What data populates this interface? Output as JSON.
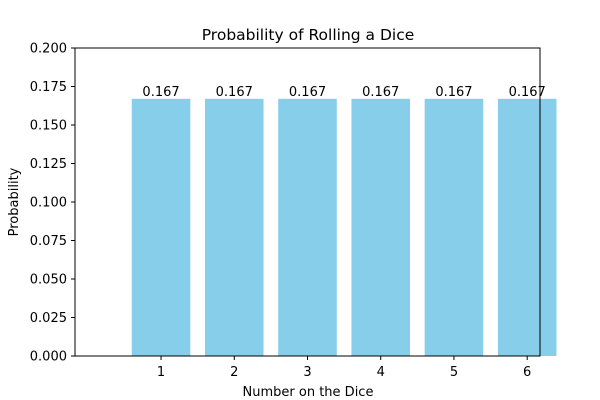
{
  "chart_data": {
    "type": "bar",
    "title": "Probability of Rolling a Dice",
    "xlabel": "Number on the Dice",
    "ylabel": "Probability",
    "categories": [
      "1",
      "2",
      "3",
      "4",
      "5",
      "6"
    ],
    "values": [
      0.167,
      0.167,
      0.167,
      0.167,
      0.167,
      0.167
    ],
    "data_labels": [
      "0.167",
      "0.167",
      "0.167",
      "0.167",
      "0.167",
      "0.167"
    ],
    "ylim": [
      0,
      0.2
    ],
    "yticks": [
      "0.000",
      "0.025",
      "0.050",
      "0.075",
      "0.100",
      "0.125",
      "0.150",
      "0.175",
      "0.200"
    ],
    "bar_color": "#87ceeb",
    "grid": false,
    "legend": "none"
  }
}
